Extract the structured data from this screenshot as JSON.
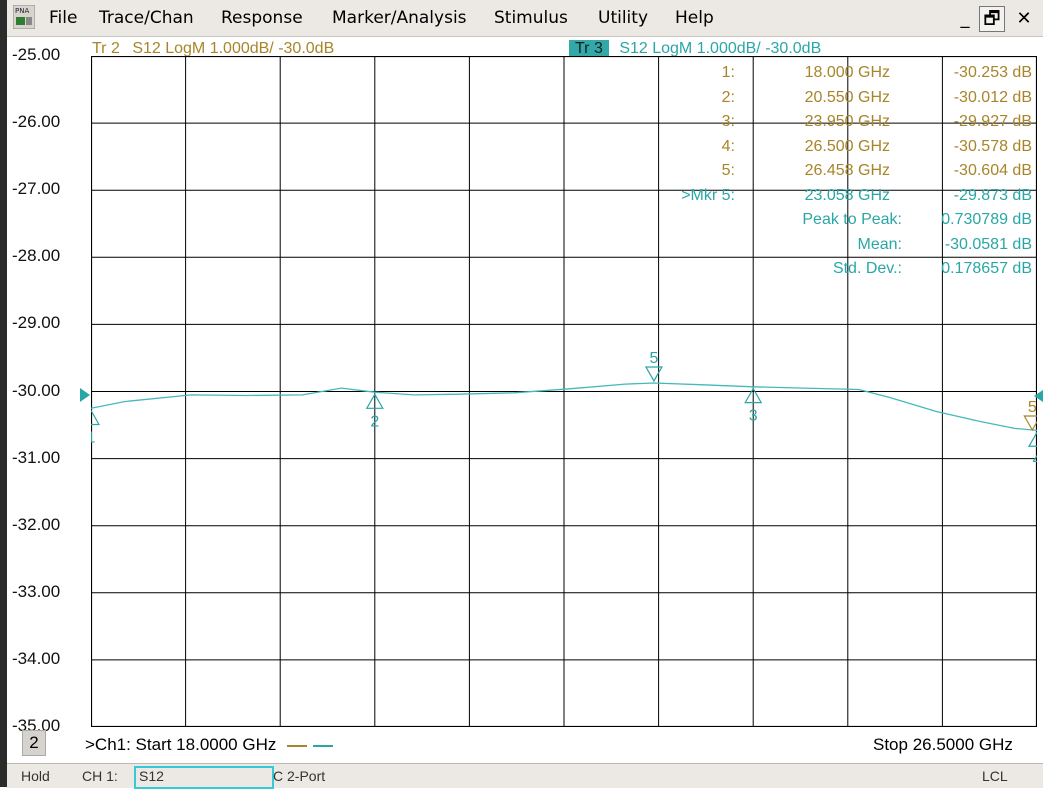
{
  "menu": {
    "items": [
      "File",
      "Trace/Chan",
      "Response",
      "Marker/Analysis",
      "Stimulus",
      "Utility",
      "Help"
    ],
    "app_icon": "pna-icon",
    "window_buttons": [
      "_",
      "🗗",
      "✕"
    ]
  },
  "traces": {
    "tr2": {
      "label": "Tr 2",
      "text": "S12 LogM 1.000dB/  -30.0dB",
      "color": "#a8852a"
    },
    "tr3": {
      "label": "Tr 3",
      "text": "S12 LogM 1.000dB/  -30.0dB",
      "color": "#2aa6a6"
    }
  },
  "markers_table": [
    {
      "num": "1:",
      "freq": "18.000 GHz",
      "value": "-30.253 dB",
      "color": "#a8852a"
    },
    {
      "num": "2:",
      "freq": "20.550 GHz",
      "value": "-30.012 dB",
      "color": "#a8852a"
    },
    {
      "num": "3:",
      "freq": "23.950 GHz",
      "value": "-29.927 dB",
      "color": "#a8852a"
    },
    {
      "num": "4:",
      "freq": "26.500 GHz",
      "value": "-30.578 dB",
      "color": "#a8852a"
    },
    {
      "num": "5:",
      "freq": "26.458 GHz",
      "value": "-30.604 dB",
      "color": "#a8852a"
    },
    {
      "num": ">Mkr 5:",
      "freq": "23.058 GHz",
      "value": "-29.873 dB",
      "color": "#2aa6a6"
    }
  ],
  "stats": [
    {
      "label": "Peak to Peak:",
      "value": "0.730789 dB"
    },
    {
      "label": "Mean:",
      "value": "-30.0581 dB"
    },
    {
      "label": "Std. Dev.:",
      "value": "0.178657 dB"
    }
  ],
  "footer": {
    "channel_num": "2",
    "start": ">Ch1: Start  18.0000 GHz",
    "stop": "Stop  26.5000 GHz"
  },
  "statusbar": {
    "hold": "Hold",
    "ch": "CH 1:",
    "meas": "S12",
    "cal": "C  2-Port",
    "lcl": "LCL"
  },
  "chart_data": {
    "type": "line",
    "x_range_ghz": [
      18.0,
      26.5
    ],
    "y_range_db": [
      -35.0,
      -25.0
    ],
    "y_ticks": [
      "-25.00",
      "-26.00",
      "-27.00",
      "-28.00",
      "-29.00",
      "-30.00",
      "-31.00",
      "-32.00",
      "-33.00",
      "-34.00",
      "-35.00"
    ],
    "x_divisions": 10,
    "series": [
      {
        "color": "#45b8bc",
        "x": [
          18.0,
          18.3,
          18.9,
          19.4,
          19.9,
          20.25,
          20.55,
          20.9,
          21.3,
          21.8,
          22.3,
          22.8,
          23.058,
          23.5,
          23.95,
          24.4,
          24.9,
          25.2,
          25.6,
          26.0,
          26.3,
          26.5
        ],
        "y": [
          -30.25,
          -30.15,
          -30.05,
          -30.06,
          -30.05,
          -29.95,
          -30.01,
          -30.05,
          -30.04,
          -30.02,
          -29.96,
          -29.89,
          -29.873,
          -29.9,
          -29.93,
          -29.95,
          -29.97,
          -30.1,
          -30.3,
          -30.45,
          -30.55,
          -30.58
        ]
      }
    ],
    "markers": [
      {
        "id": "1",
        "x": 18.0,
        "y": -30.253
      },
      {
        "id": "2",
        "x": 20.55,
        "y": -30.012
      },
      {
        "id": "3",
        "x": 23.95,
        "y": -29.927
      },
      {
        "id": "4",
        "x": 26.5,
        "y": -30.578
      },
      {
        "id": "5",
        "x": 23.058,
        "y": -29.873,
        "active": true
      },
      {
        "id": "5",
        "x": 26.458,
        "y": -30.604,
        "trace": "Tr 2"
      }
    ],
    "reference_level_db": -30.0
  }
}
